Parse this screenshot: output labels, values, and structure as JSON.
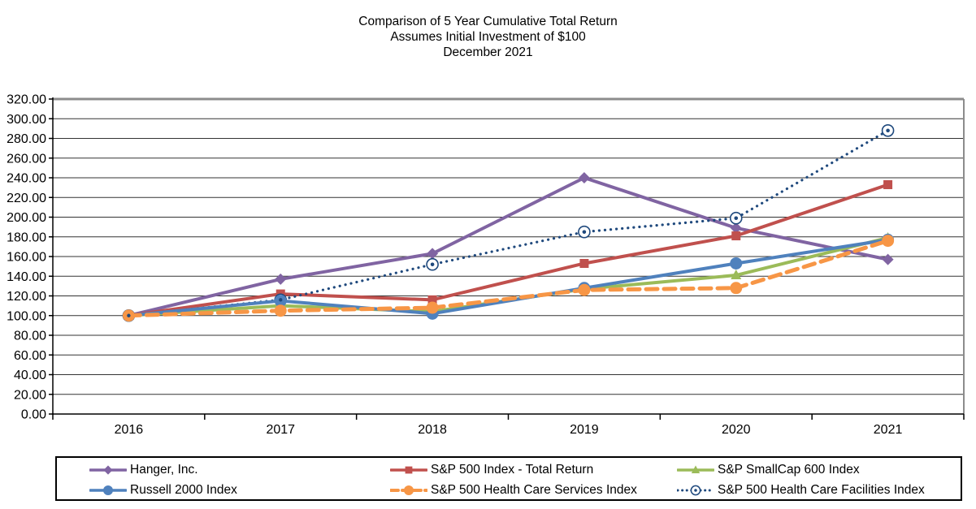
{
  "title": {
    "line1": "Comparison of 5 Year Cumulative Total Return",
    "line2": "Assumes Initial Investment of $100",
    "line3": "December 2021"
  },
  "chart_data": {
    "type": "line",
    "categories": [
      "2016",
      "2017",
      "2018",
      "2019",
      "2020",
      "2021"
    ],
    "ylim": [
      0,
      320
    ],
    "ytick_step": 20,
    "ytick_decimals": 2,
    "grid": "horizontal",
    "legend_position": "bottom",
    "axis_color": "#000000",
    "gridline_color": "#333333",
    "plot_border_color": "#8c8c8c",
    "series": [
      {
        "name": "Hanger, Inc.",
        "color": "#8064A2",
        "marker": "diamond",
        "line_style": "solid",
        "values": [
          100,
          137,
          163,
          240,
          189,
          157
        ]
      },
      {
        "name": "S&P 500 Index - Total Return",
        "color": "#C0504D",
        "marker": "square",
        "line_style": "solid",
        "values": [
          100,
          122,
          116,
          153,
          181,
          233
        ]
      },
      {
        "name": "S&P SmallCap 600 Index",
        "color": "#9BBB59",
        "marker": "triangle",
        "line_style": "solid",
        "values": [
          100,
          110,
          104,
          127,
          141,
          179
        ]
      },
      {
        "name": "Russell 2000 Index",
        "color": "#4F81BD",
        "marker": "circle",
        "line_style": "solid",
        "values": [
          100,
          115,
          102,
          128,
          153,
          177
        ]
      },
      {
        "name": "S&P 500 Health Care Services Index",
        "color": "#F79646",
        "marker": "circle",
        "line_style": "dashed",
        "values": [
          100,
          105,
          108,
          126,
          128,
          176
        ]
      },
      {
        "name": "S&P 500 Health Care Facilities Index",
        "color": "#1F497D",
        "marker": "open-circle-dot",
        "line_style": "dotted",
        "values": [
          100,
          116,
          152,
          185,
          199,
          288
        ]
      }
    ]
  }
}
